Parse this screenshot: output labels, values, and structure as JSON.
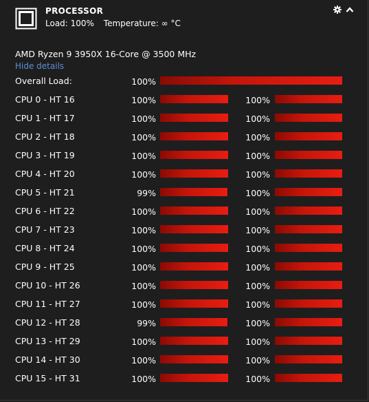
{
  "header": {
    "title": "PROCESSOR",
    "load_text": "Load: 100%",
    "temperature_text": "Temperature: ∞ °C"
  },
  "model": "AMD Ryzen 9 3950X 16-Core @ 3500 MHz",
  "toggle_label": "Hide details",
  "overall": {
    "label": "Overall Load:",
    "value": "100%",
    "level": 100
  },
  "colors": {
    "bar_start": "#8a0b04",
    "bar_end": "#e81d12",
    "link": "#5b8fd6"
  },
  "cores": [
    {
      "label": "CPU 0 - HT 16",
      "v1": "100%",
      "l1": 100,
      "v2": "100%",
      "l2": 100
    },
    {
      "label": "CPU 1 - HT 17",
      "v1": "100%",
      "l1": 100,
      "v2": "100%",
      "l2": 100
    },
    {
      "label": "CPU 2 - HT 18",
      "v1": "100%",
      "l1": 100,
      "v2": "100%",
      "l2": 100
    },
    {
      "label": "CPU 3 - HT 19",
      "v1": "100%",
      "l1": 100,
      "v2": "100%",
      "l2": 100
    },
    {
      "label": "CPU 4 - HT 20",
      "v1": "100%",
      "l1": 100,
      "v2": "100%",
      "l2": 100
    },
    {
      "label": "CPU 5 - HT 21",
      "v1": "99%",
      "l1": 99,
      "v2": "100%",
      "l2": 100
    },
    {
      "label": "CPU 6 - HT 22",
      "v1": "100%",
      "l1": 100,
      "v2": "100%",
      "l2": 100
    },
    {
      "label": "CPU 7 - HT 23",
      "v1": "100%",
      "l1": 100,
      "v2": "100%",
      "l2": 100
    },
    {
      "label": "CPU 8 - HT 24",
      "v1": "100%",
      "l1": 100,
      "v2": "100%",
      "l2": 100
    },
    {
      "label": "CPU 9 - HT 25",
      "v1": "100%",
      "l1": 100,
      "v2": "100%",
      "l2": 100
    },
    {
      "label": "CPU 10 - HT 26",
      "v1": "100%",
      "l1": 100,
      "v2": "100%",
      "l2": 100
    },
    {
      "label": "CPU 11 - HT 27",
      "v1": "100%",
      "l1": 100,
      "v2": "100%",
      "l2": 100
    },
    {
      "label": "CPU 12 - HT 28",
      "v1": "99%",
      "l1": 99,
      "v2": "100%",
      "l2": 100
    },
    {
      "label": "CPU 13 - HT 29",
      "v1": "100%",
      "l1": 100,
      "v2": "100%",
      "l2": 100
    },
    {
      "label": "CPU 14 - HT 30",
      "v1": "100%",
      "l1": 100,
      "v2": "100%",
      "l2": 100
    },
    {
      "label": "CPU 15 - HT 31",
      "v1": "100%",
      "l1": 100,
      "v2": "100%",
      "l2": 100
    }
  ]
}
